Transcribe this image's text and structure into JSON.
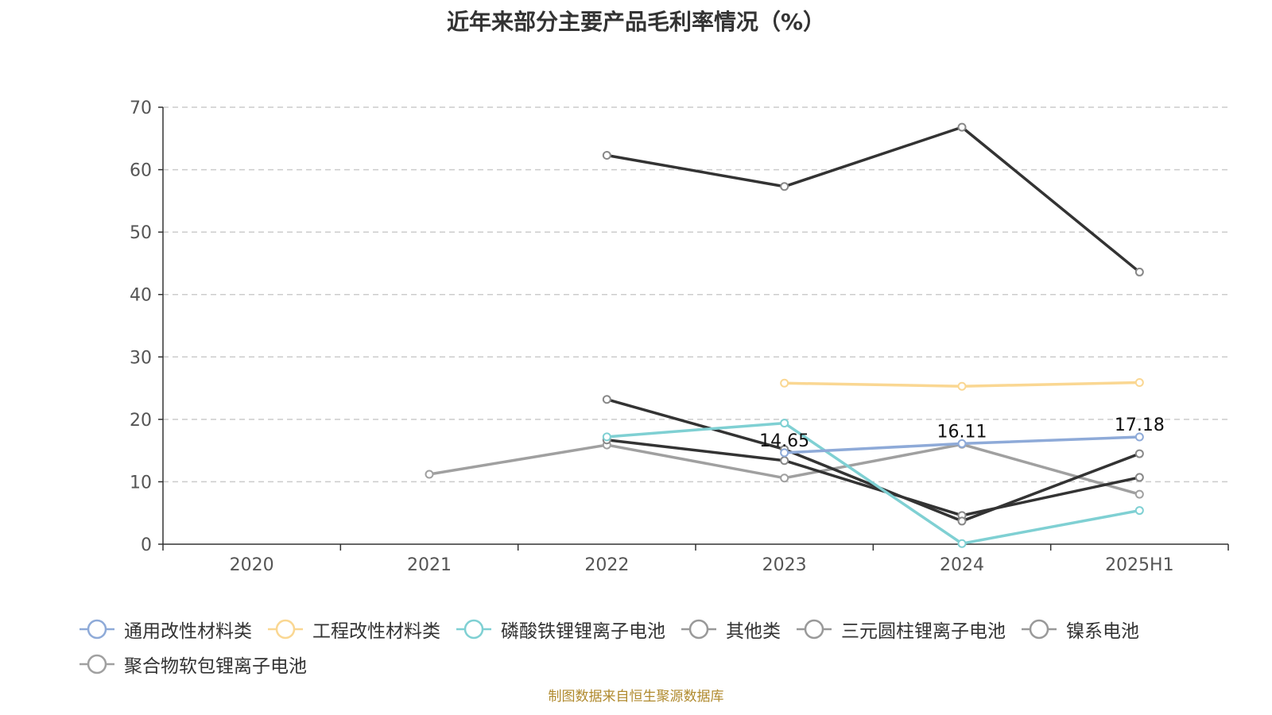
{
  "chart_data": {
    "type": "line",
    "title": "近年来部分主要产品毛利率情况（%）",
    "categories": [
      "2020",
      "2021",
      "2022",
      "2023",
      "2024",
      "2025H1"
    ],
    "ylim": [
      0,
      70
    ],
    "yticks": [
      0,
      10,
      20,
      30,
      40,
      50,
      60,
      70
    ],
    "grid": true,
    "legend_position": "bottom",
    "series": [
      {
        "name": "通用改性材料类",
        "color": "#8eaad8",
        "values": [
          null,
          null,
          null,
          14.65,
          16.11,
          17.18
        ],
        "labels": [
          null,
          null,
          null,
          "14.65",
          "16.11",
          "17.18"
        ]
      },
      {
        "name": "工程改性材料类",
        "color": "#fad792",
        "values": [
          null,
          null,
          null,
          25.8,
          25.3,
          25.9
        ]
      },
      {
        "name": "磷酸铁锂锂离子电池",
        "color": "#7fd0d3",
        "values": [
          null,
          null,
          17.2,
          19.4,
          0.1,
          5.4
        ]
      },
      {
        "name": "其他类",
        "color": "#333333",
        "values": [
          null,
          null,
          62.3,
          57.3,
          66.8,
          43.6
        ]
      },
      {
        "name": "三元圆柱锂离子电池",
        "color": "#333333",
        "values": [
          null,
          null,
          23.2,
          15.2,
          3.7,
          14.5
        ]
      },
      {
        "name": "镍系电池",
        "color": "#333333",
        "values": [
          null,
          null,
          16.7,
          13.4,
          4.6,
          10.7
        ]
      },
      {
        "name": "聚合物软包锂离子电池",
        "color": "#a0a0a0",
        "values": [
          null,
          11.2,
          15.9,
          10.6,
          16.0,
          8.0
        ]
      }
    ],
    "legend_marker_color": "#999999"
  },
  "footer": {
    "source": "制图数据来自恒生聚源数据库"
  }
}
